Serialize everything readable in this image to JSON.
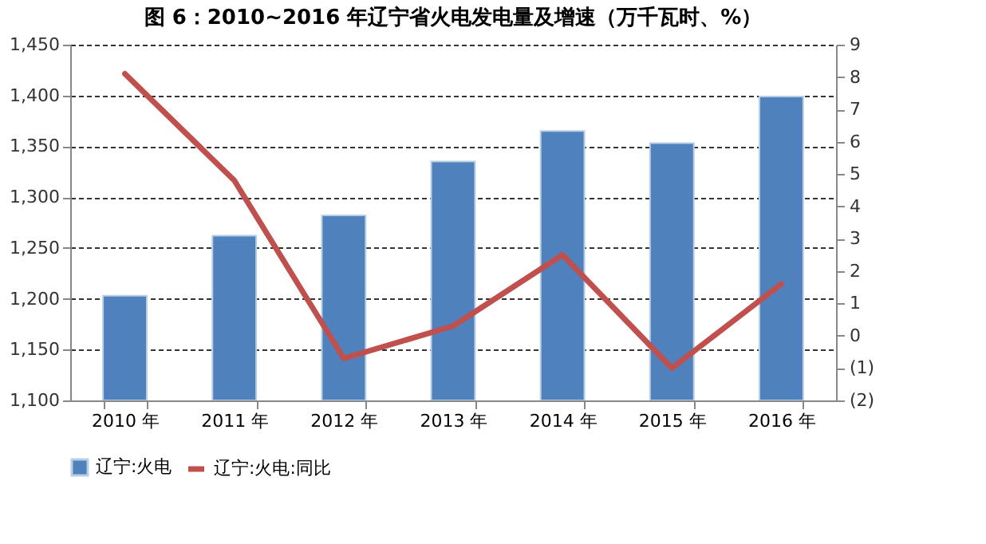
{
  "chart_data": {
    "type": "bar",
    "title": "图 6：2010~2016 年辽宁省火电发电量及增速（万千瓦时、%）",
    "categories": [
      "2010 年",
      "2011 年",
      "2012 年",
      "2013 年",
      "2014 年",
      "2015 年",
      "2016 年"
    ],
    "series": [
      {
        "name": "辽宁:火电",
        "color": "#4f81bd",
        "values": [
          1203,
          1262,
          1282,
          1335,
          1365,
          1353,
          1399
        ]
      },
      {
        "name": "辽宁:火电:同比",
        "type": "line",
        "axis": "y2",
        "color": "#c0504d",
        "values": [
          8.1,
          4.8,
          -0.7,
          0.3,
          2.5,
          -1.0,
          1.6
        ]
      }
    ],
    "ylim": [
      1100,
      1450
    ],
    "yticks": [
      {
        "value": 1100,
        "label": "1,100"
      },
      {
        "value": 1150,
        "label": "1,150"
      },
      {
        "value": 1200,
        "label": "1,200"
      },
      {
        "value": 1250,
        "label": "1,250"
      },
      {
        "value": 1300,
        "label": "1,300"
      },
      {
        "value": 1350,
        "label": "1,350"
      },
      {
        "value": 1400,
        "label": "1,400"
      },
      {
        "value": 1450,
        "label": "1,450"
      }
    ],
    "y2lim": [
      -2,
      9
    ],
    "y2ticks": [
      {
        "value": -2,
        "label": "(2)"
      },
      {
        "value": -1,
        "label": "(1)"
      },
      0,
      1,
      2,
      3,
      4,
      5,
      6,
      7,
      8,
      9
    ],
    "grid": "y",
    "legend": "bottom"
  }
}
